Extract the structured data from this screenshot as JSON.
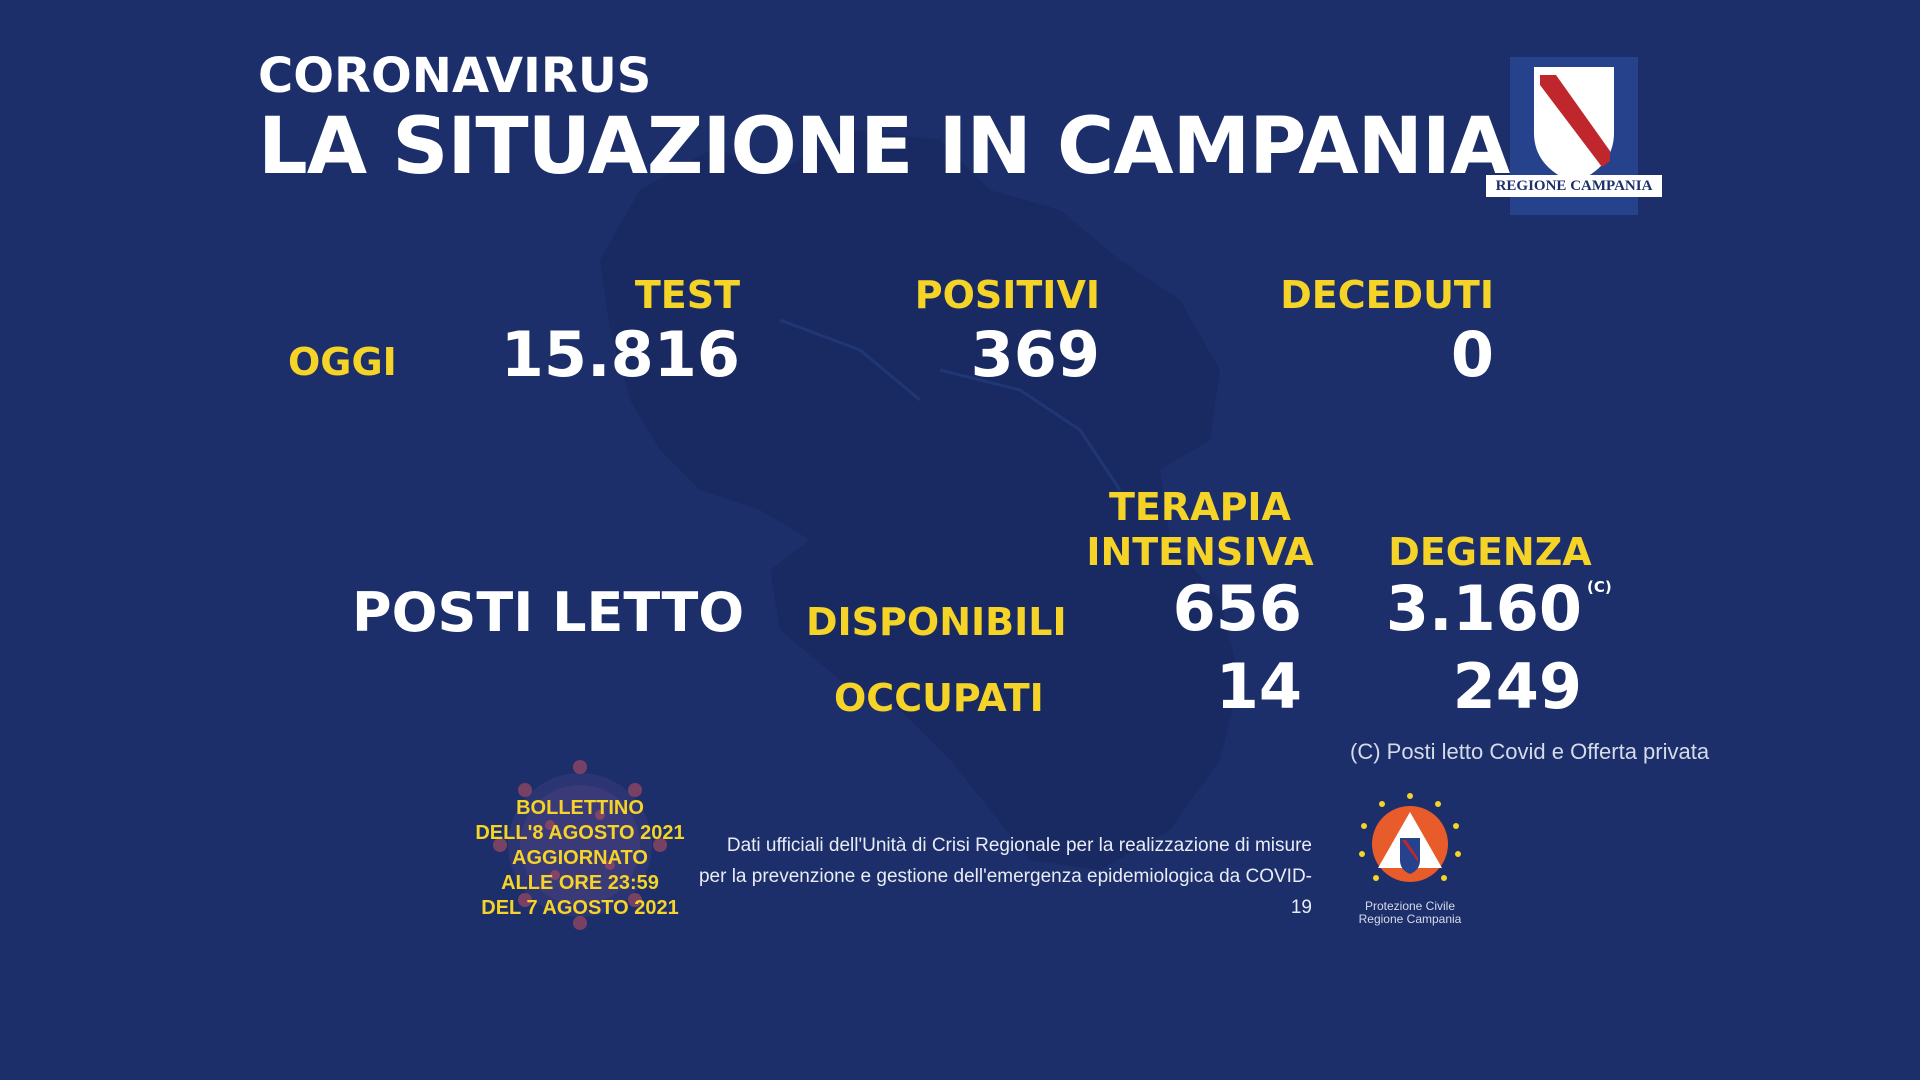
{
  "header": {
    "kicker": "CORONAVIRUS",
    "title": "LA SITUAZIONE IN CAMPANIA"
  },
  "logo_regione": {
    "text": "REGIONE CAMPANIA",
    "icon": "regione-campania-crest-icon"
  },
  "today": {
    "row_label": "OGGI",
    "columns": [
      {
        "label": "TEST",
        "value": "15.816"
      },
      {
        "label": "POSITIVI",
        "value": "369"
      },
      {
        "label": "DECEDUTI",
        "value": "0"
      }
    ]
  },
  "beds": {
    "section_label": "POSTI LETTO",
    "col_ti_line1": "TERAPIA",
    "col_ti_line2": "INTENSIVA",
    "col_degenza": "DEGENZA",
    "row_available": {
      "label": "DISPONIBILI",
      "ti": "656",
      "degenza": "3.160",
      "marker": "(C)"
    },
    "row_occupied": {
      "label": "OCCUPATI",
      "ti": "14",
      "degenza": "249"
    },
    "footnote": "(C) Posti letto Covid e Offerta privata"
  },
  "bulletin": {
    "line1": "BOLLETTINO",
    "line2": "DELL'8 AGOSTO 2021",
    "line3": "AGGIORNATO",
    "line4": "ALLE ORE 23:59",
    "line5": "DEL 7 AGOSTO 2021"
  },
  "source": {
    "line1": "Dati ufficiali dell'Unità di Crisi Regionale per la realizzazione di misure",
    "line2": "per la prevenzione e gestione dell'emergenza epidemiologica da COVID-19"
  },
  "protezione_civile": {
    "line1": "Protezione Civile",
    "line2": "Regione Campania",
    "icon": "protezione-civile-logo-icon"
  },
  "colors": {
    "background": "#1c2f6b",
    "accent_yellow": "#f5d327",
    "text_white": "#ffffff"
  }
}
